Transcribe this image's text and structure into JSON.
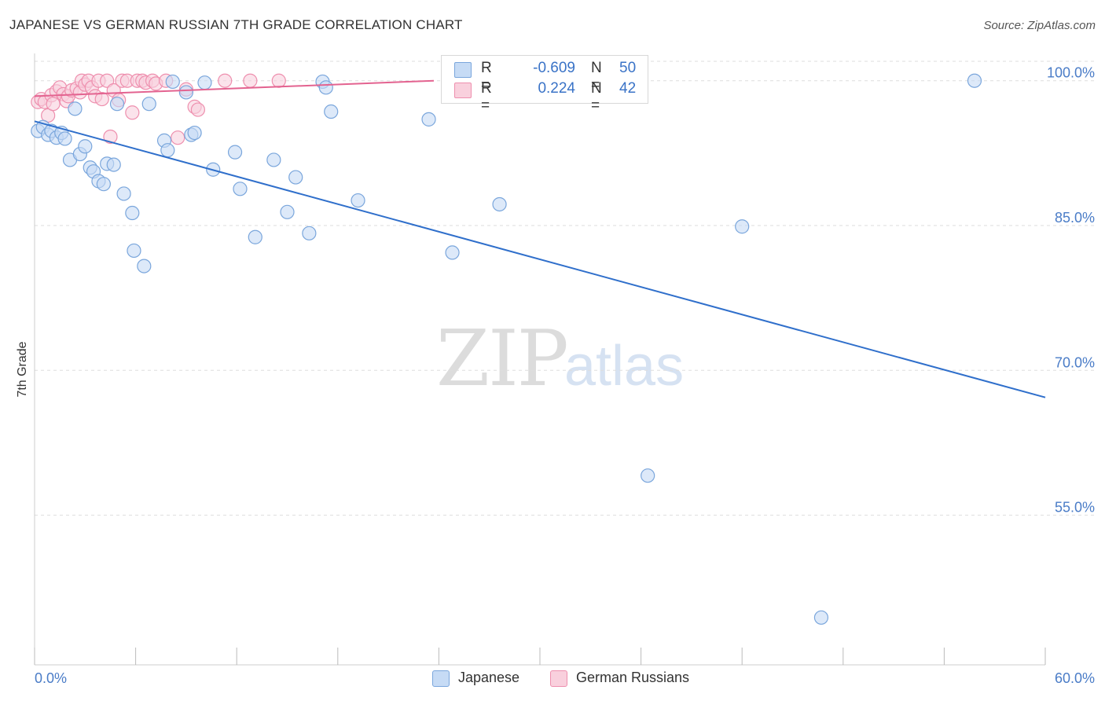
{
  "title": "JAPANESE VS GERMAN RUSSIAN 7TH GRADE CORRELATION CHART",
  "source": "Source: ZipAtlas.com",
  "watermark": {
    "zip": "ZIP",
    "atlas": "atlas"
  },
  "legend": {
    "rows": [
      {
        "r_label": "R =",
        "r_value": "-0.609",
        "n_label": "N =",
        "n_value": "50"
      },
      {
        "r_label": "R =",
        "r_value": "0.224",
        "n_label": "N =",
        "n_value": "42"
      }
    ]
  },
  "bottom_legend": {
    "japanese": "Japanese",
    "german_russians": "German Russians"
  },
  "colors": {
    "japanese_fill": "#c6dbf5",
    "japanese_stroke": "#7aa6dc",
    "japanese_line": "#2f6fcb",
    "german_fill": "#f9d0dd",
    "german_stroke": "#ee8fae",
    "german_line": "#e36390",
    "tick_label": "#4a7cc7",
    "grid": "#dddddd"
  },
  "chart_data": {
    "type": "scatter",
    "title": "JAPANESE VS GERMAN RUSSIAN 7TH GRADE CORRELATION CHART",
    "xlabel": "",
    "ylabel": "7th Grade",
    "xlim": [
      0,
      60
    ],
    "ylim": [
      39.5,
      102.5
    ],
    "x_tick_labels": [
      "0.0%",
      "60.0%"
    ],
    "y_ticks": [
      55,
      70,
      85,
      100
    ],
    "y_tick_labels": [
      "55.0%",
      "70.0%",
      "85.0%",
      "100.0%"
    ],
    "grid": true,
    "series": [
      {
        "name": "Japanese",
        "x": [
          0.2,
          0.5,
          0.8,
          1.0,
          1.3,
          1.6,
          1.8,
          2.1,
          2.4,
          2.7,
          3.0,
          3.3,
          3.5,
          3.8,
          4.1,
          4.3,
          4.7,
          4.9,
          5.3,
          5.8,
          5.9,
          6.5,
          6.8,
          7.7,
          7.9,
          8.2,
          9.0,
          9.3,
          9.5,
          10.1,
          10.6,
          11.9,
          12.2,
          13.1,
          14.2,
          15.0,
          16.3,
          15.5,
          17.1,
          17.3,
          17.6,
          19.2,
          23.4,
          24.8,
          27.6,
          32.0,
          36.4,
          42.0,
          46.7,
          55.8
        ],
        "y": [
          94.8,
          95.2,
          94.4,
          94.8,
          94.1,
          94.6,
          94.0,
          91.8,
          97.1,
          92.4,
          93.2,
          91.0,
          90.6,
          89.6,
          89.3,
          91.4,
          91.3,
          97.6,
          88.3,
          86.3,
          82.4,
          80.8,
          97.6,
          93.8,
          92.8,
          99.9,
          98.8,
          94.4,
          94.6,
          99.8,
          90.8,
          92.6,
          88.8,
          83.8,
          91.8,
          86.4,
          84.2,
          90.0,
          99.9,
          99.3,
          96.8,
          87.6,
          96.0,
          82.2,
          87.2,
          100.0,
          59.1,
          84.9,
          44.4,
          100.0
        ],
        "trend": {
          "x": [
            0,
            60
          ],
          "y": [
            95.8,
            67.2
          ]
        }
      },
      {
        "name": "German Russians",
        "x": [
          0.2,
          0.4,
          0.6,
          0.8,
          1.0,
          1.1,
          1.3,
          1.5,
          1.7,
          1.9,
          2.0,
          2.2,
          2.5,
          2.7,
          2.8,
          3.0,
          3.2,
          3.4,
          3.6,
          3.8,
          4.0,
          4.3,
          4.5,
          4.7,
          5.0,
          5.2,
          5.5,
          5.8,
          6.1,
          6.4,
          6.6,
          7.0,
          7.2,
          7.8,
          8.5,
          9.0,
          9.5,
          9.7,
          11.3,
          12.8,
          14.5,
          27.8
        ],
        "y": [
          97.8,
          98.1,
          97.8,
          96.4,
          98.5,
          97.6,
          98.9,
          99.3,
          98.6,
          97.9,
          98.4,
          99.0,
          99.2,
          98.8,
          100.0,
          99.6,
          100.0,
          99.3,
          98.4,
          100.0,
          98.1,
          100.0,
          94.2,
          99.0,
          98.0,
          100.0,
          100.0,
          96.7,
          100.0,
          100.0,
          99.8,
          100.0,
          99.7,
          100.0,
          94.1,
          99.1,
          97.3,
          97.0,
          100.0,
          100.0,
          100.0,
          100.0
        ],
        "trend": {
          "x": [
            0,
            23.7
          ],
          "y": [
            98.4,
            100.0
          ]
        }
      }
    ]
  }
}
